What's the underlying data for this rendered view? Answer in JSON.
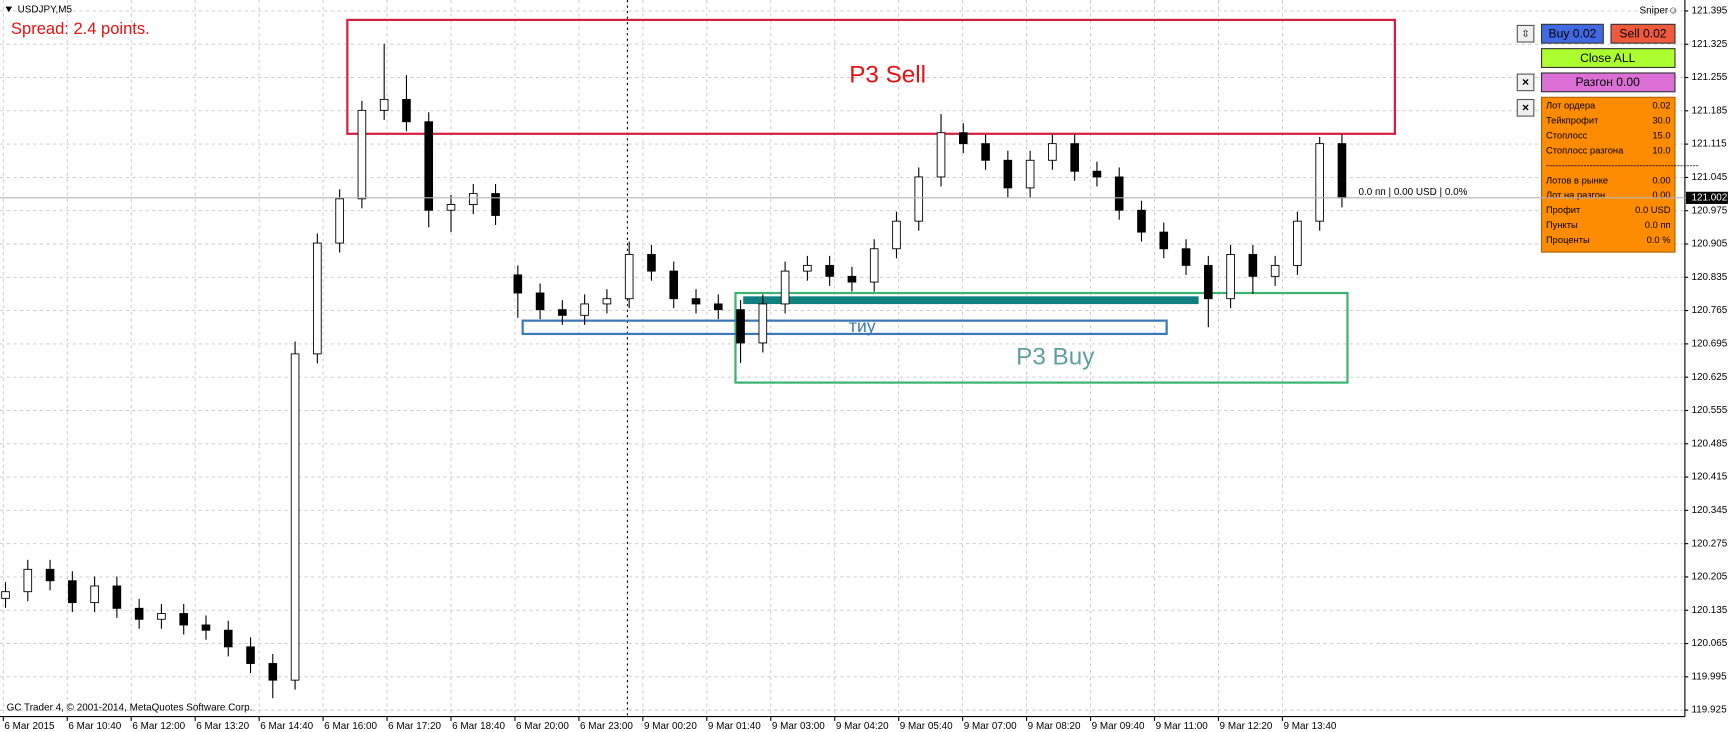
{
  "window": {
    "symbol": "USDJPY,M5",
    "spread": "Spread: 2.4 points.",
    "expert": "Sniper☺",
    "footer": "GC Trader 4, © 2001-2014, MetaQuotes Software Corp.",
    "status": "0.0 пп | 0.00 USD | 0.0%"
  },
  "chart_data": {
    "type": "candlestick",
    "categories": [
      "6 Mar 2015",
      "6 Mar 10:40",
      "6 Mar 12:00",
      "6 Mar 13:20",
      "6 Mar 14:40",
      "6 Mar 16:00",
      "6 Mar 17:20",
      "6 Mar 18:40",
      "6 Mar 20:00",
      "6 Mar 23:00",
      "9 Mar 00:20",
      "9 Mar 01:40",
      "9 Mar 03:00",
      "9 Mar 04:20",
      "9 Mar 05:40",
      "9 Mar 07:00",
      "9 Mar 08:20",
      "9 Mar 09:40",
      "9 Mar 11:00",
      "9 Mar 12:20",
      "9 Mar 13:40"
    ],
    "ohlc": [
      [
        120.16,
        120.194,
        120.14,
        120.174
      ],
      [
        120.174,
        120.241,
        120.154,
        120.221
      ],
      [
        120.221,
        120.241,
        120.177,
        120.197
      ],
      [
        120.197,
        120.217,
        120.131,
        120.151
      ],
      [
        120.151,
        120.206,
        120.131,
        120.186
      ],
      [
        120.186,
        120.206,
        120.119,
        120.139
      ],
      [
        120.139,
        120.159,
        120.096,
        120.116
      ],
      [
        120.116,
        120.148,
        120.096,
        120.128
      ],
      [
        120.128,
        120.148,
        120.084,
        120.104
      ],
      [
        120.104,
        120.124,
        120.073,
        120.093
      ],
      [
        120.093,
        120.113,
        120.038,
        120.058
      ],
      [
        120.058,
        120.078,
        120.003,
        120.023
      ],
      [
        120.023,
        120.043,
        119.95,
        119.988
      ],
      [
        119.988,
        120.7,
        119.968,
        120.674
      ],
      [
        120.674,
        120.927,
        120.654,
        120.907
      ],
      [
        120.907,
        121.02,
        120.887,
        121.0
      ],
      [
        121.0,
        121.206,
        120.98,
        121.186
      ],
      [
        121.186,
        121.326,
        121.166,
        121.209
      ],
      [
        121.209,
        121.26,
        121.142,
        121.162
      ],
      [
        121.162,
        121.182,
        120.94,
        120.976
      ],
      [
        120.976,
        121.008,
        120.93,
        120.988
      ],
      [
        120.988,
        121.031,
        120.968,
        121.011
      ],
      [
        121.011,
        121.031,
        120.945,
        120.965
      ],
      [
        120.84,
        120.86,
        120.75,
        120.802
      ],
      [
        120.802,
        120.822,
        120.747,
        120.767
      ],
      [
        120.767,
        120.787,
        120.735,
        120.755
      ],
      [
        120.755,
        120.799,
        120.735,
        120.779
      ],
      [
        120.779,
        120.81,
        120.759,
        120.79
      ],
      [
        120.79,
        120.91,
        120.77,
        120.883
      ],
      [
        120.883,
        120.903,
        120.828,
        120.848
      ],
      [
        120.848,
        120.868,
        120.77,
        120.79
      ],
      [
        120.79,
        120.81,
        120.759,
        120.779
      ],
      [
        120.779,
        120.799,
        120.747,
        120.767
      ],
      [
        120.767,
        120.787,
        120.655,
        120.697
      ],
      [
        120.697,
        120.799,
        120.677,
        120.779
      ],
      [
        120.779,
        120.868,
        120.759,
        120.848
      ],
      [
        120.848,
        120.88,
        120.828,
        120.86
      ],
      [
        120.86,
        120.88,
        120.817,
        120.837
      ],
      [
        120.837,
        120.857,
        120.805,
        120.825
      ],
      [
        120.825,
        120.915,
        120.805,
        120.895
      ],
      [
        120.895,
        120.973,
        120.875,
        120.953
      ],
      [
        120.953,
        121.066,
        120.933,
        121.046
      ],
      [
        121.046,
        121.178,
        121.026,
        121.139
      ],
      [
        121.139,
        121.159,
        121.096,
        121.116
      ],
      [
        121.116,
        121.136,
        121.061,
        121.081
      ],
      [
        121.081,
        121.101,
        121.003,
        121.023
      ],
      [
        121.023,
        121.101,
        121.003,
        121.081
      ],
      [
        121.081,
        121.136,
        121.061,
        121.116
      ],
      [
        121.116,
        121.136,
        121.038,
        121.058
      ],
      [
        121.058,
        121.078,
        121.026,
        121.046
      ],
      [
        121.046,
        121.066,
        120.956,
        120.976
      ],
      [
        120.976,
        120.996,
        120.91,
        120.93
      ],
      [
        120.93,
        120.95,
        120.875,
        120.895
      ],
      [
        120.895,
        120.915,
        120.84,
        120.86
      ],
      [
        120.86,
        120.88,
        120.73,
        120.79
      ],
      [
        120.79,
        120.903,
        120.77,
        120.883
      ],
      [
        120.883,
        120.903,
        120.8,
        120.837
      ],
      [
        120.837,
        120.88,
        120.817,
        120.86
      ],
      [
        120.86,
        120.973,
        120.84,
        120.953
      ],
      [
        120.953,
        121.13,
        120.933,
        121.116
      ],
      [
        121.116,
        121.136,
        120.982,
        121.002
      ]
    ],
    "up_color": "#ffffff",
    "down_color": "#000000",
    "last_price": 121.002,
    "ylim": [
      119.879,
      121.418
    ],
    "yticks": [
      121.395,
      121.325,
      121.255,
      121.185,
      121.115,
      121.045,
      120.975,
      120.905,
      120.835,
      120.765,
      120.695,
      120.625,
      120.555,
      120.485,
      120.415,
      120.345,
      120.275,
      120.205,
      120.135,
      120.065,
      119.995,
      119.925
    ],
    "grid": true
  },
  "annotations": {
    "sell": "P3 Sell",
    "buy": "P3 Buy",
    "level": "тиу"
  },
  "panel": {
    "toggle": "⇳",
    "close_icon": "×",
    "buy": "Buy 0.02",
    "sell": "Sell 0.02",
    "close_all": "Close ALL",
    "boost": "Разгон 0.00",
    "rows": [
      [
        "Лот ордера",
        "0.02"
      ],
      [
        "Тейкпрофит",
        "30.0"
      ],
      [
        "Стоплосс",
        "15.0"
      ],
      [
        "Стоплосс разгона",
        "10.0"
      ],
      [
        "-------------------------------------------------",
        ""
      ],
      [
        "Лотов в рынке",
        "0.00"
      ],
      [
        "Лот на разгон",
        "0.00"
      ],
      [
        "Профит",
        "0.0 USD"
      ],
      [
        "Пункты",
        "0.0 пп"
      ],
      [
        "Проценты",
        "0.0 %"
      ]
    ]
  }
}
